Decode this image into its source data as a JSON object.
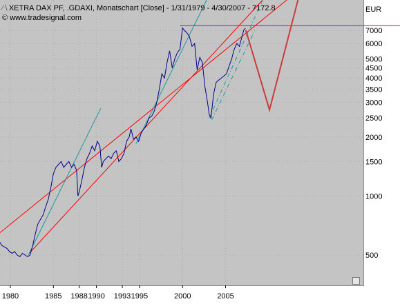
{
  "header": {
    "title": "XETRA DAX PF, .GDAXI, Monatschart [Close] - 1/31/1979 - 4/30/2007 - 7172.8",
    "copyright": "© www.tradesignal.com"
  },
  "chart_data": {
    "type": "line",
    "yscale": "log",
    "ylim": [
      350,
      10000
    ],
    "xlim": [
      1978.8,
      2021.0
    ],
    "y_unit": "EUR",
    "yticks": [
      500,
      1000,
      1500,
      2000,
      2500,
      3000,
      3500,
      4000,
      4500,
      5000,
      6000,
      7000
    ],
    "xticks": [
      "1980",
      "1985",
      "1988",
      "1990",
      "1993",
      "1995",
      "2000",
      "2005"
    ],
    "grid": true,
    "series": [
      {
        "values_x": [
          1978.8,
          1979.0,
          1979.3,
          1979.6,
          1979.9,
          1980.2,
          1980.5,
          1980.8,
          1981.1,
          1981.4,
          1981.7,
          1982.0,
          1982.3,
          1982.6,
          1982.9,
          1983.2,
          1983.5,
          1983.8,
          1984.1,
          1984.4,
          1984.7,
          1985.0,
          1985.3,
          1985.6,
          1985.9,
          1986.2,
          1986.5,
          1986.8,
          1987.1,
          1987.4,
          1987.7,
          1987.85,
          1988.0,
          1988.3,
          1988.6,
          1988.9,
          1989.2,
          1989.5,
          1989.8,
          1990.1,
          1990.4,
          1990.6,
          1990.8,
          1991.1,
          1991.4,
          1991.7,
          1992.0,
          1992.3,
          1992.6,
          1992.9,
          1993.2,
          1993.5,
          1993.8,
          1994.0,
          1994.3,
          1994.6,
          1994.9,
          1995.2,
          1995.5,
          1995.8,
          1996.1,
          1996.4,
          1996.7,
          1997.0,
          1997.3,
          1997.6,
          1997.9,
          1998.2,
          1998.5,
          1998.8,
          1999.1,
          1999.4,
          1999.7,
          2000.0,
          2000.2,
          2000.5,
          2000.8,
          2001.1,
          2001.4,
          2001.7,
          2002.0,
          2002.3,
          2002.6,
          2002.9,
          2003.1,
          2003.3,
          2003.6,
          2003.9,
          2004.2,
          2004.5,
          2004.8,
          2005.1,
          2005.4,
          2005.7,
          2006.0,
          2006.3,
          2006.6,
          2006.9,
          2007.1,
          2007.3
        ],
        "values_y": [
          580,
          560,
          550,
          540,
          520,
          510,
          520,
          500,
          490,
          510,
          500,
          490,
          500,
          560,
          640,
          720,
          760,
          800,
          880,
          960,
          1100,
          1300,
          1400,
          1450,
          1500,
          1400,
          1450,
          1500,
          1400,
          1450,
          1350,
          1000,
          1050,
          1200,
          1400,
          1550,
          1650,
          1800,
          1700,
          1900,
          1800,
          1400,
          1500,
          1550,
          1600,
          1550,
          1650,
          1700,
          1500,
          1550,
          1650,
          1900,
          2000,
          2200,
          1950,
          2000,
          1900,
          2100,
          2200,
          2300,
          2500,
          2550,
          2700,
          3000,
          3500,
          4200,
          4000,
          4800,
          5500,
          4500,
          5000,
          5400,
          5600,
          7200,
          7000,
          6800,
          6500,
          5800,
          6000,
          4400,
          5100,
          4800,
          3600,
          3000,
          2600,
          2500,
          3300,
          3800,
          3900,
          4000,
          4100,
          4200,
          4600,
          5000,
          5600,
          6000,
          5800,
          6500,
          7000,
          7172.8
        ]
      }
    ],
    "annotations": {
      "horizontal_line_at": 7400,
      "projection_v": [
        [
          2007.35,
          7000
        ],
        [
          2010.1,
          2750
        ],
        [
          2013.4,
          10000
        ]
      ],
      "upper_channel": [
        [
          1978.8,
          650
        ],
        [
          2012.1,
          10000
        ]
      ],
      "lower_channel": [
        [
          1982.2,
          510
        ],
        [
          2009.3,
          10000
        ]
      ],
      "teal_trend_1": [
        [
          1982.1,
          500
        ],
        [
          1990.5,
          2800
        ]
      ],
      "teal_trend_2": [
        [
          1994.6,
          1850
        ],
        [
          2002.8,
          10000
        ]
      ],
      "dash_dot_1": [
        [
          2003.1,
          2500
        ],
        [
          2009.3,
          10000
        ]
      ],
      "dash_dot_2": [
        [
          2003.4,
          2450
        ],
        [
          2008.4,
          7000
        ]
      ]
    }
  },
  "colors": {
    "plot_background": "#c4c4c4",
    "price_line": "#00008b",
    "channel": "#ff0000",
    "projection": "#c83c3c",
    "trend": "#1a9a9a",
    "grid": "#aaaaaa"
  }
}
